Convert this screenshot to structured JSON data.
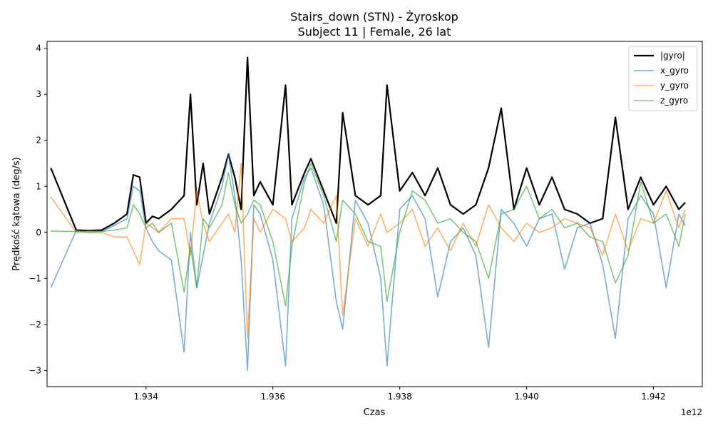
{
  "chart_data": {
    "type": "line",
    "title": "Stairs_down (STN) - Żyroskop",
    "subtitle": "Subject 11 | Female, 26 lat",
    "xlabel": "Czas",
    "ylabel": "Prędkość kątowa (deg/s)",
    "x_offset_label": "1e12",
    "xlim": [
      1.93244,
      1.94277
    ],
    "ylim": [
      -3.35,
      4.15
    ],
    "x_ticks": [
      1.934,
      1.936,
      1.938,
      1.94,
      1.942
    ],
    "x_tick_labels": [
      "1.934",
      "1.936",
      "1.938",
      "1.940",
      "1.942"
    ],
    "y_ticks": [
      -3,
      -2,
      -1,
      0,
      1,
      2,
      3,
      4
    ],
    "y_tick_labels": [
      "−3",
      "−2",
      "−1",
      "0",
      "1",
      "2",
      "3",
      "4"
    ],
    "grid": false,
    "legend_position": "top-right",
    "x": [
      1.9325,
      1.9329,
      1.9331,
      1.9333,
      1.9335,
      1.9337,
      1.9338,
      1.9339,
      1.934,
      1.9341,
      1.9342,
      1.9344,
      1.9346,
      1.9347,
      1.9348,
      1.9349,
      1.935,
      1.9352,
      1.9353,
      1.9354,
      1.9355,
      1.9356,
      1.9357,
      1.9358,
      1.936,
      1.9362,
      1.9363,
      1.9365,
      1.9366,
      1.9368,
      1.937,
      1.9371,
      1.9373,
      1.9375,
      1.9377,
      1.9378,
      1.938,
      1.9382,
      1.9384,
      1.9386,
      1.9388,
      1.939,
      1.9392,
      1.9394,
      1.9396,
      1.9398,
      1.94,
      1.9402,
      1.9404,
      1.9406,
      1.9408,
      1.941,
      1.9412,
      1.9414,
      1.9416,
      1.9418,
      1.942,
      1.9422,
      1.9424,
      1.9425
    ],
    "series": [
      {
        "name": "|gyro|",
        "color": "#000000",
        "values": [
          1.4,
          0.05,
          0.04,
          0.05,
          0.2,
          0.4,
          1.25,
          1.2,
          0.2,
          0.35,
          0.3,
          0.5,
          0.8,
          3.0,
          0.6,
          1.5,
          0.4,
          1.2,
          1.7,
          1.2,
          0.5,
          3.8,
          0.8,
          1.1,
          0.6,
          3.2,
          0.6,
          1.3,
          1.6,
          0.9,
          0.2,
          2.6,
          0.8,
          0.6,
          0.8,
          3.2,
          0.9,
          1.3,
          0.8,
          1.4,
          0.6,
          0.4,
          0.6,
          1.4,
          2.7,
          0.5,
          1.4,
          0.6,
          1.2,
          0.5,
          0.4,
          0.2,
          0.3,
          2.5,
          0.5,
          1.2,
          0.6,
          1.0,
          0.5,
          0.65
        ]
      },
      {
        "name": "x_gyro",
        "color": "#1f77b4",
        "values": [
          -1.2,
          0.04,
          0.0,
          0.02,
          0.15,
          0.3,
          1.0,
          0.9,
          0.1,
          -0.2,
          -0.4,
          -0.6,
          -2.6,
          0.0,
          -1.2,
          -0.5,
          0.2,
          1.0,
          1.7,
          0.8,
          -0.6,
          -3.0,
          0.6,
          0.4,
          -0.6,
          -2.9,
          0.3,
          1.2,
          1.4,
          0.6,
          -1.5,
          -2.1,
          0.7,
          0.2,
          -1.0,
          -2.9,
          0.5,
          0.8,
          0.3,
          -1.4,
          -0.2,
          0.1,
          -0.5,
          -2.5,
          0.5,
          0.2,
          -0.3,
          0.3,
          0.4,
          -0.8,
          0.1,
          0.2,
          -0.7,
          -2.3,
          0.3,
          0.8,
          0.4,
          -1.2,
          0.4,
          0.15
        ]
      },
      {
        "name": "y_gyro",
        "color": "#ff7f0e",
        "values": [
          0.77,
          0.0,
          0.0,
          0.0,
          -0.1,
          -0.1,
          -0.4,
          -0.7,
          0.2,
          0.1,
          0.0,
          0.3,
          0.3,
          -0.5,
          0.9,
          0.2,
          -0.2,
          0.2,
          0.4,
          0.0,
          1.5,
          -2.3,
          0.3,
          0.0,
          0.5,
          0.3,
          -0.2,
          0.1,
          0.5,
          0.2,
          0.8,
          -1.8,
          0.3,
          -0.3,
          0.4,
          0.0,
          0.2,
          0.5,
          -0.3,
          0.1,
          -0.4,
          0.2,
          -0.3,
          0.6,
          0.1,
          -0.2,
          0.2,
          0.0,
          0.1,
          0.3,
          0.2,
          0.1,
          -0.5,
          0.4,
          -0.4,
          0.3,
          0.2,
          0.9,
          0.1,
          0.5
        ]
      },
      {
        "name": "z_gyro",
        "color": "#2ca02c",
        "values": [
          0.03,
          0.02,
          0.03,
          0.02,
          0.05,
          0.1,
          0.6,
          0.4,
          0.1,
          0.2,
          0.0,
          0.2,
          -1.3,
          -0.3,
          -1.2,
          0.3,
          0.1,
          0.6,
          1.3,
          0.6,
          0.2,
          0.4,
          0.7,
          0.6,
          -0.2,
          -1.6,
          -0.3,
          1.1,
          1.5,
          0.8,
          -0.2,
          0.7,
          0.4,
          -0.2,
          -0.3,
          -1.5,
          0.0,
          0.9,
          0.7,
          0.2,
          0.3,
          0.0,
          -0.2,
          -1.0,
          0.4,
          0.5,
          1.0,
          0.3,
          0.5,
          0.1,
          0.2,
          -0.1,
          -0.2,
          -1.1,
          -0.5,
          1.1,
          0.2,
          0.4,
          -0.3,
          0.4
        ]
      }
    ]
  }
}
